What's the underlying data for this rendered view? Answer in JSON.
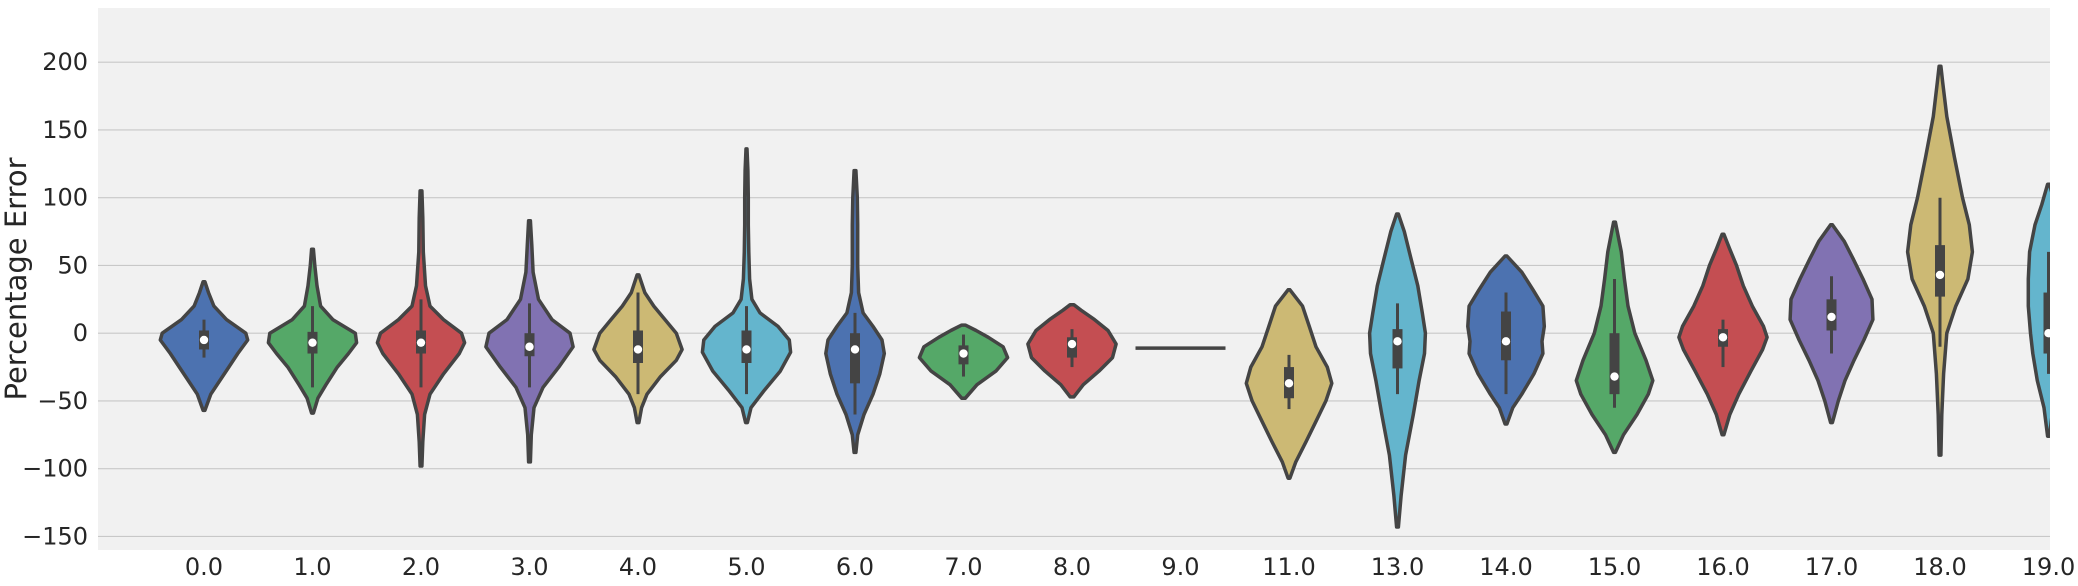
{
  "chart_data": {
    "type": "violin",
    "ylabel": "Percentage Error",
    "ylim": [
      -160,
      240
    ],
    "yticks": [
      -150,
      -100,
      -50,
      0,
      50,
      100,
      150,
      200
    ],
    "grid": true,
    "categories": [
      "0.0",
      "1.0",
      "2.0",
      "3.0",
      "4.0",
      "5.0",
      "6.0",
      "7.0",
      "8.0",
      "9.0",
      "11.0",
      "13.0",
      "14.0",
      "15.0",
      "16.0",
      "17.0",
      "18.0",
      "19.0"
    ],
    "colors": [
      "#4C72B0",
      "#55A868",
      "#C44E52",
      "#8172B2",
      "#CCB974",
      "#64B5CD"
    ],
    "violins": [
      {
        "min": -57,
        "max": 38,
        "q1": -12,
        "median": -5,
        "q3": 2,
        "wl": -18,
        "wh": 10,
        "shape": [
          [
            -57,
            0.02
          ],
          [
            -45,
            0.15
          ],
          [
            -35,
            0.35
          ],
          [
            -25,
            0.55
          ],
          [
            -15,
            0.75
          ],
          [
            -5,
            0.97
          ],
          [
            0,
            0.93
          ],
          [
            10,
            0.5
          ],
          [
            20,
            0.22
          ],
          [
            30,
            0.1
          ],
          [
            38,
            0.02
          ]
        ]
      },
      {
        "min": -59,
        "max": 62,
        "q1": -15,
        "median": -7,
        "q3": 1,
        "wl": -40,
        "wh": 20,
        "shape": [
          [
            -59,
            0.02
          ],
          [
            -48,
            0.12
          ],
          [
            -38,
            0.3
          ],
          [
            -25,
            0.55
          ],
          [
            -15,
            0.8
          ],
          [
            -7,
            0.98
          ],
          [
            0,
            0.95
          ],
          [
            10,
            0.45
          ],
          [
            20,
            0.18
          ],
          [
            35,
            0.1
          ],
          [
            50,
            0.05
          ],
          [
            62,
            0.02
          ]
        ]
      },
      {
        "min": -98,
        "max": 105,
        "q1": -15,
        "median": -7,
        "q3": 2,
        "wl": -40,
        "wh": 25,
        "shape": [
          [
            -98,
            0.02
          ],
          [
            -80,
            0.04
          ],
          [
            -60,
            0.08
          ],
          [
            -45,
            0.2
          ],
          [
            -30,
            0.5
          ],
          [
            -15,
            0.85
          ],
          [
            -7,
            0.97
          ],
          [
            0,
            0.9
          ],
          [
            10,
            0.5
          ],
          [
            20,
            0.2
          ],
          [
            35,
            0.1
          ],
          [
            60,
            0.05
          ],
          [
            85,
            0.04
          ],
          [
            105,
            0.02
          ]
        ]
      },
      {
        "min": -95,
        "max": 83,
        "q1": -17,
        "median": -10,
        "q3": 0,
        "wl": -40,
        "wh": 22,
        "shape": [
          [
            -95,
            0.02
          ],
          [
            -75,
            0.04
          ],
          [
            -55,
            0.1
          ],
          [
            -40,
            0.3
          ],
          [
            -25,
            0.65
          ],
          [
            -10,
            0.97
          ],
          [
            0,
            0.9
          ],
          [
            10,
            0.5
          ],
          [
            25,
            0.2
          ],
          [
            45,
            0.08
          ],
          [
            65,
            0.05
          ],
          [
            83,
            0.02
          ]
        ]
      },
      {
        "min": -66,
        "max": 43,
        "q1": -22,
        "median": -12,
        "q3": 2,
        "wl": -45,
        "wh": 30,
        "shape": [
          [
            -66,
            0.02
          ],
          [
            -55,
            0.08
          ],
          [
            -45,
            0.2
          ],
          [
            -32,
            0.5
          ],
          [
            -20,
            0.85
          ],
          [
            -12,
            0.98
          ],
          [
            0,
            0.85
          ],
          [
            10,
            0.6
          ],
          [
            20,
            0.35
          ],
          [
            30,
            0.15
          ],
          [
            43,
            0.02
          ]
        ]
      },
      {
        "min": -66,
        "max": 136,
        "q1": -22,
        "median": -12,
        "q3": 2,
        "wl": -45,
        "wh": 20,
        "shape": [
          [
            -66,
            0.02
          ],
          [
            -55,
            0.1
          ],
          [
            -42,
            0.4
          ],
          [
            -28,
            0.75
          ],
          [
            -14,
            0.98
          ],
          [
            -5,
            0.95
          ],
          [
            5,
            0.7
          ],
          [
            15,
            0.3
          ],
          [
            25,
            0.12
          ],
          [
            40,
            0.07
          ],
          [
            60,
            0.05
          ],
          [
            80,
            0.04
          ],
          [
            100,
            0.04
          ],
          [
            120,
            0.03
          ],
          [
            136,
            0.01
          ]
        ]
      },
      {
        "min": -88,
        "max": 120,
        "q1": -37,
        "median": -12,
        "q3": 0,
        "wl": -60,
        "wh": 15,
        "shape": [
          [
            -88,
            0.02
          ],
          [
            -75,
            0.06
          ],
          [
            -60,
            0.2
          ],
          [
            -45,
            0.4
          ],
          [
            -30,
            0.55
          ],
          [
            -15,
            0.65
          ],
          [
            -5,
            0.6
          ],
          [
            5,
            0.4
          ],
          [
            15,
            0.18
          ],
          [
            30,
            0.08
          ],
          [
            50,
            0.06
          ],
          [
            80,
            0.06
          ],
          [
            100,
            0.05
          ],
          [
            120,
            0.02
          ]
        ]
      },
      {
        "min": -48,
        "max": 6,
        "q1": -23,
        "median": -15,
        "q3": -9,
        "wl": -32,
        "wh": -1,
        "shape": [
          [
            -48,
            0.04
          ],
          [
            -38,
            0.3
          ],
          [
            -28,
            0.72
          ],
          [
            -18,
            0.98
          ],
          [
            -10,
            0.88
          ],
          [
            -3,
            0.55
          ],
          [
            2,
            0.28
          ],
          [
            6,
            0.04
          ]
        ]
      },
      {
        "min": -47,
        "max": 21,
        "q1": -18,
        "median": -8,
        "q3": -3,
        "wl": -25,
        "wh": 3,
        "shape": [
          [
            -47,
            0.04
          ],
          [
            -38,
            0.25
          ],
          [
            -28,
            0.6
          ],
          [
            -18,
            0.9
          ],
          [
            -8,
            0.98
          ],
          [
            2,
            0.8
          ],
          [
            10,
            0.5
          ],
          [
            17,
            0.2
          ],
          [
            21,
            0.04
          ]
        ]
      },
      {
        "min": -11,
        "max": -11,
        "q1": -11,
        "median": -11,
        "q3": -11,
        "wl": -11,
        "wh": -11,
        "flat": true,
        "shape": []
      },
      {
        "min": -107,
        "max": 32,
        "q1": -48,
        "median": -37,
        "q3": -25,
        "wl": -56,
        "wh": -16,
        "shape": [
          [
            -107,
            0.02
          ],
          [
            -95,
            0.15
          ],
          [
            -80,
            0.38
          ],
          [
            -65,
            0.6
          ],
          [
            -50,
            0.82
          ],
          [
            -37,
            0.95
          ],
          [
            -25,
            0.85
          ],
          [
            -10,
            0.6
          ],
          [
            5,
            0.45
          ],
          [
            20,
            0.3
          ],
          [
            32,
            0.02
          ]
        ]
      },
      {
        "min": -143,
        "max": 88,
        "q1": -26,
        "median": -6,
        "q3": 3,
        "wl": -45,
        "wh": 22,
        "shape": [
          [
            -143,
            0.02
          ],
          [
            -120,
            0.08
          ],
          [
            -90,
            0.18
          ],
          [
            -60,
            0.35
          ],
          [
            -35,
            0.48
          ],
          [
            -15,
            0.6
          ],
          [
            0,
            0.62
          ],
          [
            15,
            0.55
          ],
          [
            35,
            0.45
          ],
          [
            55,
            0.3
          ],
          [
            75,
            0.15
          ],
          [
            88,
            0.02
          ]
        ]
      },
      {
        "min": -67,
        "max": 57,
        "q1": -20,
        "median": -6,
        "q3": 16,
        "wl": -45,
        "wh": 30,
        "shape": [
          [
            -67,
            0.02
          ],
          [
            -55,
            0.15
          ],
          [
            -45,
            0.35
          ],
          [
            -30,
            0.62
          ],
          [
            -15,
            0.82
          ],
          [
            -6,
            0.8
          ],
          [
            5,
            0.85
          ],
          [
            20,
            0.82
          ],
          [
            32,
            0.6
          ],
          [
            45,
            0.35
          ],
          [
            57,
            0.02
          ]
        ]
      },
      {
        "min": -88,
        "max": 82,
        "q1": -45,
        "median": -32,
        "q3": 0,
        "wl": -55,
        "wh": 40,
        "shape": [
          [
            -88,
            0.02
          ],
          [
            -75,
            0.2
          ],
          [
            -60,
            0.5
          ],
          [
            -45,
            0.75
          ],
          [
            -35,
            0.85
          ],
          [
            -20,
            0.7
          ],
          [
            0,
            0.45
          ],
          [
            20,
            0.3
          ],
          [
            40,
            0.22
          ],
          [
            60,
            0.15
          ],
          [
            82,
            0.02
          ]
        ]
      },
      {
        "min": -75,
        "max": 73,
        "q1": -10,
        "median": -3,
        "q3": 3,
        "wl": -25,
        "wh": 10,
        "shape": [
          [
            -75,
            0.02
          ],
          [
            -60,
            0.15
          ],
          [
            -45,
            0.35
          ],
          [
            -28,
            0.62
          ],
          [
            -12,
            0.88
          ],
          [
            -3,
            0.98
          ],
          [
            5,
            0.9
          ],
          [
            20,
            0.65
          ],
          [
            35,
            0.45
          ],
          [
            50,
            0.3
          ],
          [
            62,
            0.15
          ],
          [
            73,
            0.02
          ]
        ]
      },
      {
        "min": -66,
        "max": 80,
        "q1": 2,
        "median": 12,
        "q3": 25,
        "wl": -15,
        "wh": 42,
        "shape": [
          [
            -66,
            0.02
          ],
          [
            -50,
            0.15
          ],
          [
            -35,
            0.3
          ],
          [
            -20,
            0.5
          ],
          [
            -5,
            0.72
          ],
          [
            10,
            0.92
          ],
          [
            25,
            0.9
          ],
          [
            40,
            0.7
          ],
          [
            55,
            0.48
          ],
          [
            68,
            0.28
          ],
          [
            80,
            0.02
          ]
        ]
      },
      {
        "min": -90,
        "max": 197,
        "q1": 27,
        "median": 43,
        "q3": 65,
        "wl": -10,
        "wh": 100,
        "shape": [
          [
            -90,
            0.02
          ],
          [
            -60,
            0.04
          ],
          [
            -30,
            0.08
          ],
          [
            0,
            0.15
          ],
          [
            20,
            0.35
          ],
          [
            40,
            0.62
          ],
          [
            60,
            0.72
          ],
          [
            80,
            0.65
          ],
          [
            100,
            0.5
          ],
          [
            130,
            0.32
          ],
          [
            160,
            0.15
          ],
          [
            185,
            0.06
          ],
          [
            197,
            0.02
          ]
        ]
      },
      {
        "min": -76,
        "max": 110,
        "q1": -15,
        "median": 0,
        "q3": 30,
        "wl": -30,
        "wh": 60,
        "shape": [
          [
            -76,
            0.02
          ],
          [
            -55,
            0.1
          ],
          [
            -35,
            0.25
          ],
          [
            -15,
            0.35
          ],
          [
            0,
            0.4
          ],
          [
            20,
            0.45
          ],
          [
            40,
            0.45
          ],
          [
            60,
            0.42
          ],
          [
            80,
            0.3
          ],
          [
            95,
            0.15
          ],
          [
            110,
            0.02
          ]
        ]
      }
    ]
  }
}
